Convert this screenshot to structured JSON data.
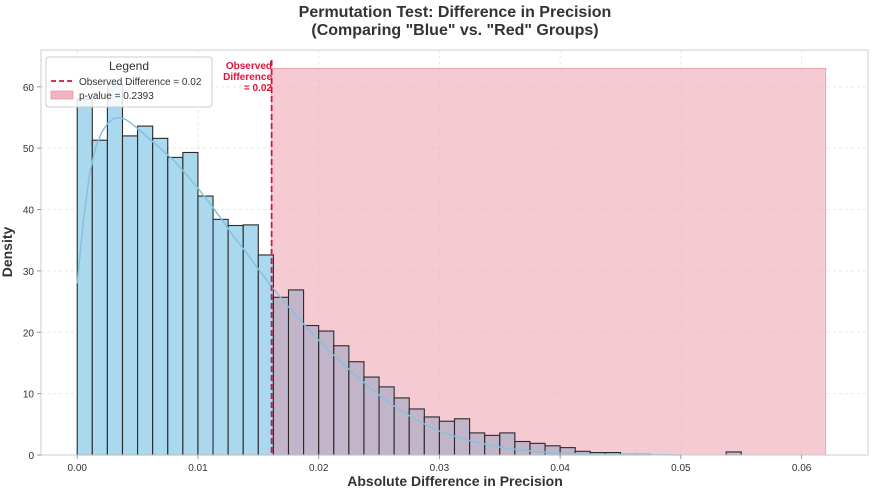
{
  "chart_data": {
    "type": "bar",
    "title_line1": "Permutation Test: Difference in Precision",
    "title_line2": "(Comparing \"Blue\" vs. \"Red\" Groups)",
    "xlabel": "Absolute Difference in Precision",
    "ylabel": "Density",
    "xlim": [
      -0.003,
      0.0655
    ],
    "ylim": [
      0,
      66
    ],
    "x_ticks": [
      0.0,
      0.01,
      0.02,
      0.03,
      0.04,
      0.05,
      0.06
    ],
    "x_tick_labels": [
      "0.00",
      "0.01",
      "0.02",
      "0.03",
      "0.04",
      "0.05",
      "0.06"
    ],
    "y_ticks": [
      0,
      10,
      20,
      30,
      40,
      50,
      60
    ],
    "y_tick_labels": [
      "0",
      "10",
      "20",
      "30",
      "40",
      "50",
      "60"
    ],
    "grid": true,
    "legend": {
      "title": "Legend",
      "position": "top-left",
      "entries": [
        "Observed Difference = 0.02",
        "p-value = 0.2393"
      ]
    },
    "observed_difference": 0.0161,
    "observed_annotation": [
      "Observed",
      "Difference",
      "= 0.02"
    ],
    "p_value": 0.2393,
    "shaded_region": {
      "x_start": 0.0161,
      "x_end": 0.062,
      "y_top": 63
    },
    "bin_width": 0.00125,
    "bin_start": 0.0,
    "densities": [
      58.0,
      51.3,
      60.5,
      52.0,
      53.6,
      51.6,
      48.5,
      49.3,
      42.2,
      38.4,
      37.4,
      37.5,
      32.6,
      25.7,
      26.9,
      21.1,
      20.2,
      17.8,
      15.2,
      12.7,
      11.1,
      9.3,
      7.5,
      6.2,
      5.5,
      5.9,
      3.6,
      3.2,
      3.6,
      2.2,
      1.9,
      1.5,
      1.2,
      0.6,
      0.4,
      0.4,
      0.1,
      0.1,
      0.0,
      0.0,
      0.0,
      0.0,
      0.0,
      0.5
    ],
    "kde_curve": {
      "x": [
        0.0,
        0.0005,
        0.001,
        0.0015,
        0.002,
        0.0025,
        0.003,
        0.0035,
        0.004,
        0.0045,
        0.005,
        0.006,
        0.007,
        0.008,
        0.009,
        0.01,
        0.011,
        0.012,
        0.013,
        0.014,
        0.015,
        0.016,
        0.017,
        0.018,
        0.019,
        0.02,
        0.021,
        0.022,
        0.023,
        0.024,
        0.025,
        0.026,
        0.027,
        0.028,
        0.029,
        0.03,
        0.031,
        0.032,
        0.033,
        0.034,
        0.035,
        0.036,
        0.037,
        0.038,
        0.039,
        0.04,
        0.041,
        0.042,
        0.043,
        0.044,
        0.045,
        0.046,
        0.047,
        0.048,
        0.049,
        0.05
      ],
      "y": [
        28.0,
        38.0,
        45.5,
        50.0,
        52.5,
        54.0,
        54.8,
        55.0,
        54.7,
        54.0,
        53.2,
        51.5,
        49.8,
        48.0,
        45.8,
        43.5,
        41.0,
        38.3,
        35.5,
        33.0,
        30.3,
        27.7,
        25.3,
        23.0,
        20.8,
        18.7,
        16.7,
        14.9,
        13.1,
        11.4,
        9.8,
        8.3,
        7.0,
        5.8,
        4.8,
        3.9,
        3.2,
        2.6,
        2.1,
        1.7,
        1.3,
        1.0,
        0.75,
        0.55,
        0.4,
        0.3,
        0.22,
        0.16,
        0.12,
        0.09,
        0.07,
        0.05,
        0.04,
        0.03,
        0.02,
        0.0
      ]
    },
    "colors": {
      "bar_fill": "#a9d8ef",
      "bar_fill_right": "#b8b2c8",
      "bar_edge": "#2a2a2a",
      "kde_line": "#87c2dc",
      "observed_line": "#dc143c",
      "shade": "#f2b3c1",
      "grid": "#e6e6e6",
      "frame": "#cccccc",
      "text": "#333333"
    }
  }
}
